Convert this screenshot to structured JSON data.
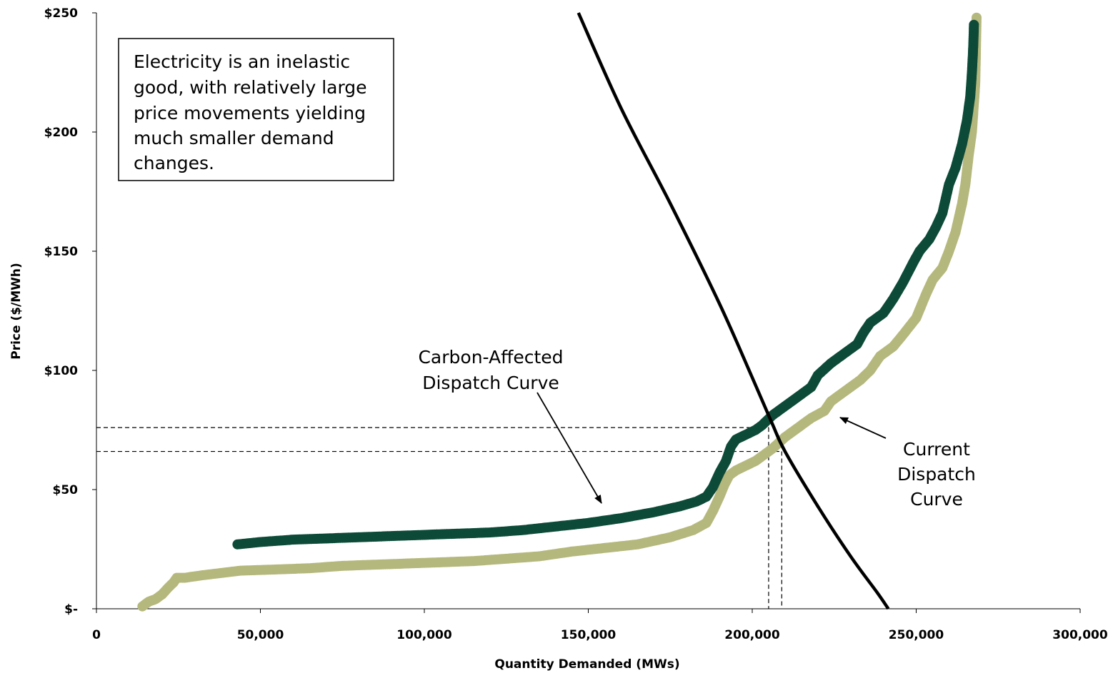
{
  "chart_data": {
    "type": "scatter",
    "title": "",
    "xlabel": "Quantity Demanded (MWs)",
    "ylabel": "Price ($/MWh)",
    "xlim": [
      0,
      300000
    ],
    "ylim": [
      0,
      250
    ],
    "x_ticks": [
      {
        "value": 0,
        "label": "0"
      },
      {
        "value": 50000,
        "label": "50,000"
      },
      {
        "value": 100000,
        "label": "100,000"
      },
      {
        "value": 150000,
        "label": "150,000"
      },
      {
        "value": 200000,
        "label": "200,000"
      },
      {
        "value": 250000,
        "label": "250,000"
      },
      {
        "value": 300000,
        "label": "300,000"
      }
    ],
    "y_ticks": [
      {
        "value": 0,
        "label": "$-"
      },
      {
        "value": 50,
        "label": "$50"
      },
      {
        "value": 100,
        "label": "$100"
      },
      {
        "value": 150,
        "label": "$150"
      },
      {
        "value": 200,
        "label": "$200"
      },
      {
        "value": 250,
        "label": "$250"
      }
    ],
    "grid": false,
    "series": [
      {
        "key": "current",
        "color": "#b5b87c",
        "points": [
          [
            14000,
            1
          ],
          [
            16000,
            3
          ],
          [
            18000,
            4
          ],
          [
            20000,
            6
          ],
          [
            22000,
            9
          ],
          [
            23500,
            11
          ],
          [
            24500,
            13
          ],
          [
            27000,
            13
          ],
          [
            32000,
            14
          ],
          [
            38000,
            15
          ],
          [
            44000,
            16
          ],
          [
            55000,
            16.5
          ],
          [
            65000,
            17
          ],
          [
            75000,
            18
          ],
          [
            85000,
            18.5
          ],
          [
            95000,
            19
          ],
          [
            105000,
            19.5
          ],
          [
            115000,
            20
          ],
          [
            125000,
            21
          ],
          [
            135000,
            22
          ],
          [
            145000,
            24
          ],
          [
            155000,
            25.5
          ],
          [
            165000,
            27
          ],
          [
            175000,
            30
          ],
          [
            182000,
            33
          ],
          [
            186000,
            36
          ],
          [
            188000,
            41
          ],
          [
            190000,
            47
          ],
          [
            191500,
            52
          ],
          [
            193000,
            56
          ],
          [
            195000,
            58
          ],
          [
            198000,
            60
          ],
          [
            201000,
            62
          ],
          [
            204000,
            65
          ],
          [
            206000,
            67
          ],
          [
            210000,
            72
          ],
          [
            214000,
            76
          ],
          [
            218000,
            80
          ],
          [
            222000,
            83
          ],
          [
            224000,
            87
          ],
          [
            228000,
            91
          ],
          [
            233000,
            96
          ],
          [
            236000,
            100
          ],
          [
            239000,
            106
          ],
          [
            243000,
            110
          ],
          [
            246000,
            115
          ],
          [
            250000,
            122
          ],
          [
            253000,
            132
          ],
          [
            255000,
            138
          ],
          [
            258000,
            143
          ],
          [
            260000,
            150
          ],
          [
            262000,
            158
          ],
          [
            264000,
            170
          ],
          [
            265000,
            178
          ],
          [
            266000,
            190
          ],
          [
            267000,
            200
          ],
          [
            267500,
            210
          ],
          [
            268000,
            220
          ],
          [
            268200,
            232
          ],
          [
            268400,
            248
          ]
        ]
      },
      {
        "key": "carbon",
        "color": "#0d4b38",
        "points": [
          [
            43000,
            27
          ],
          [
            50000,
            28
          ],
          [
            60000,
            29
          ],
          [
            70000,
            29.5
          ],
          [
            80000,
            30
          ],
          [
            90000,
            30.5
          ],
          [
            100000,
            31
          ],
          [
            110000,
            31.5
          ],
          [
            120000,
            32
          ],
          [
            130000,
            33
          ],
          [
            140000,
            34.5
          ],
          [
            150000,
            36
          ],
          [
            160000,
            38
          ],
          [
            170000,
            40.5
          ],
          [
            178000,
            43
          ],
          [
            183000,
            45
          ],
          [
            186000,
            47
          ],
          [
            188000,
            51
          ],
          [
            190000,
            57
          ],
          [
            192000,
            62
          ],
          [
            193500,
            68
          ],
          [
            195000,
            71
          ],
          [
            198000,
            73
          ],
          [
            201000,
            75
          ],
          [
            203000,
            77
          ],
          [
            206000,
            81
          ],
          [
            210000,
            85
          ],
          [
            214000,
            89
          ],
          [
            218000,
            93
          ],
          [
            220000,
            98
          ],
          [
            224000,
            103
          ],
          [
            228000,
            107
          ],
          [
            232000,
            111
          ],
          [
            234000,
            116
          ],
          [
            236000,
            120
          ],
          [
            240000,
            124
          ],
          [
            243000,
            130
          ],
          [
            246000,
            137
          ],
          [
            249000,
            145
          ],
          [
            251000,
            150
          ],
          [
            254000,
            155
          ],
          [
            256000,
            160
          ],
          [
            258000,
            166
          ],
          [
            259000,
            172
          ],
          [
            260000,
            178
          ],
          [
            262000,
            185
          ],
          [
            264000,
            195
          ],
          [
            265500,
            205
          ],
          [
            266500,
            215
          ],
          [
            267000,
            225
          ],
          [
            267300,
            233
          ],
          [
            267500,
            240
          ],
          [
            267600,
            245
          ]
        ]
      }
    ],
    "demand_curve": {
      "color": "#000000",
      "points": [
        [
          147000,
          250
        ],
        [
          160000,
          210
        ],
        [
          175000,
          170
        ],
        [
          190000,
          128
        ],
        [
          200000,
          97
        ],
        [
          206000,
          78
        ],
        [
          210000,
          66
        ],
        [
          220000,
          43
        ],
        [
          230000,
          22
        ],
        [
          238000,
          7
        ],
        [
          241500,
          0
        ]
      ]
    },
    "reference_lines": [
      {
        "price": 76,
        "quantity": 205000
      },
      {
        "price": 66,
        "quantity": 209000
      }
    ],
    "annotations": {
      "textbox": [
        "Electricity is an inelastic",
        "good, with relatively large",
        "price movements yielding",
        "much smaller demand",
        "changes."
      ],
      "carbon_label": [
        "Carbon-Affected",
        "Dispatch Curve"
      ],
      "current_label": [
        "Current",
        "Dispatch",
        "Curve"
      ]
    }
  }
}
